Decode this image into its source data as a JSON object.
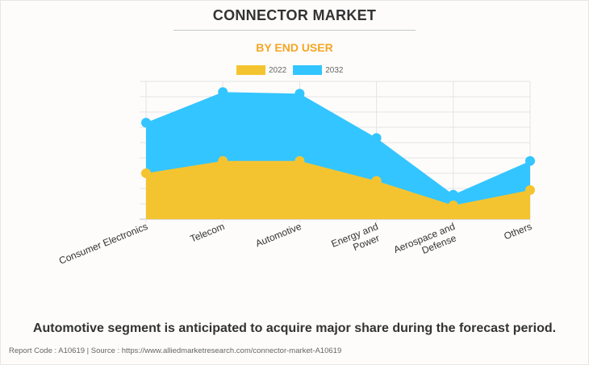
{
  "header": {
    "title": "CONNECTOR MARKET",
    "subtitle": "BY END USER"
  },
  "legend": [
    {
      "label": "2022",
      "color": "#f4c430"
    },
    {
      "label": "2032",
      "color": "#33c5ff"
    }
  ],
  "chart_data": {
    "type": "area",
    "title": "CONNECTOR MARKET",
    "subtitle": "BY END USER",
    "categories": [
      "Consumer Electronics",
      "Telecom",
      "Automotive",
      "Energy and Power",
      "Aerospace and Defense",
      "Others"
    ],
    "series": [
      {
        "name": "2022",
        "color": "#f4c430",
        "values": [
          3.0,
          3.8,
          3.8,
          2.5,
          0.9,
          1.9
        ]
      },
      {
        "name": "2032",
        "color": "#33c5ff",
        "values": [
          6.3,
          8.3,
          8.2,
          5.3,
          1.6,
          3.8
        ]
      }
    ],
    "xlabel": "",
    "ylabel": "",
    "ylim": [
      0,
      9
    ],
    "y_units": "relative (no y-axis labels shown)",
    "grid": true,
    "legend_position": "top"
  },
  "footer": {
    "note": "Automotive segment is anticipated to acquire major share during the forecast period.",
    "source": "Report Code : A10619  |  Source : https://www.alliedmarketresearch.com/connector-market-A10619"
  }
}
